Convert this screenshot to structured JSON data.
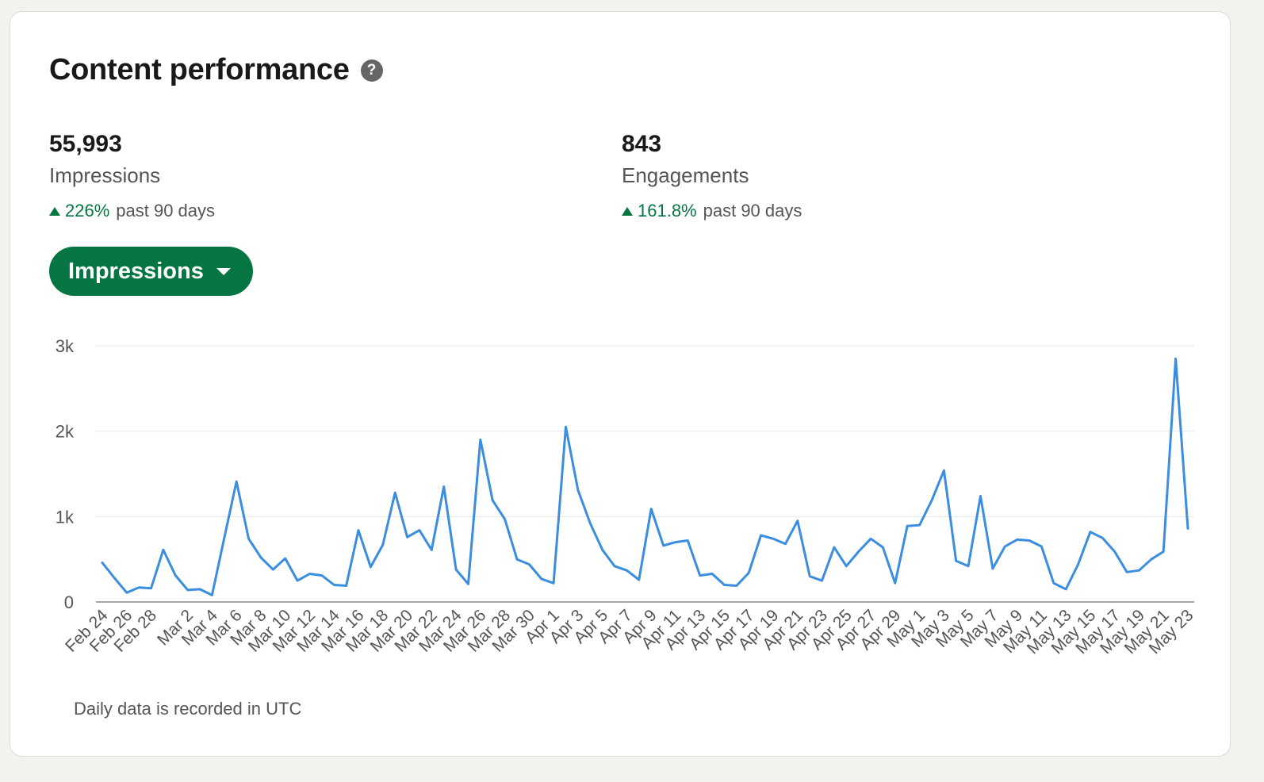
{
  "card": {
    "title": "Content performance",
    "help_icon": "question-circle-icon"
  },
  "stats": [
    {
      "value": "55,993",
      "label": "Impressions",
      "change": "226%",
      "period": "past 90 days",
      "trend_icon": "triangle-up-icon"
    },
    {
      "value": "843",
      "label": "Engagements",
      "change": "161.8%",
      "period": "past 90 days",
      "trend_icon": "triangle-up-icon"
    }
  ],
  "metric_selector": {
    "selected": "Impressions",
    "icon": "caret-down-icon"
  },
  "colors": {
    "accent_green": "#057642",
    "line_blue": "#3b8de0",
    "grid": "#e6e6e6"
  },
  "footnote": "Daily data is recorded in UTC",
  "chart_data": {
    "type": "line",
    "series": [
      {
        "values": [
          460,
          280,
          110,
          170,
          160,
          610,
          310,
          140,
          150,
          80,
          750,
          1410,
          740,
          520,
          380,
          510,
          250,
          330,
          310,
          200,
          190,
          840,
          410,
          670,
          1280,
          760,
          840,
          610,
          1350,
          380,
          210,
          1900,
          1190,
          970,
          500,
          440,
          270,
          220,
          2050,
          1310,
          920,
          610,
          420,
          370,
          260,
          1090,
          660,
          700,
          720,
          310,
          330,
          200,
          190,
          340,
          780,
          740,
          680,
          950,
          300,
          250,
          640,
          420,
          590,
          740,
          640,
          220,
          890,
          900,
          1190,
          1540,
          480,
          420,
          1240,
          390,
          650,
          730,
          720,
          650,
          220,
          150,
          440,
          820,
          750,
          590,
          350,
          370,
          500,
          590,
          2850,
          860
        ]
      }
    ],
    "x": [
      "Feb 24",
      "Feb 25",
      "Feb 26",
      "Feb 27",
      "Feb 28",
      "Feb 29",
      "Mar 1",
      "Mar 2",
      "Mar 3",
      "Mar 4",
      "Mar 5",
      "Mar 6",
      "Mar 7",
      "Mar 8",
      "Mar 9",
      "Mar 10",
      "Mar 11",
      "Mar 12",
      "Mar 13",
      "Mar 14",
      "Mar 15",
      "Mar 16",
      "Mar 17",
      "Mar 18",
      "Mar 19",
      "Mar 20",
      "Mar 21",
      "Mar 22",
      "Mar 23",
      "Mar 24",
      "Mar 25",
      "Mar 26",
      "Mar 27",
      "Mar 28",
      "Mar 29",
      "Mar 30",
      "Mar 31",
      "Apr 1",
      "Apr 2",
      "Apr 3",
      "Apr 4",
      "Apr 5",
      "Apr 6",
      "Apr 7",
      "Apr 8",
      "Apr 9",
      "Apr 10",
      "Apr 11",
      "Apr 12",
      "Apr 13",
      "Apr 14",
      "Apr 15",
      "Apr 16",
      "Apr 17",
      "Apr 18",
      "Apr 19",
      "Apr 20",
      "Apr 21",
      "Apr 22",
      "Apr 23",
      "Apr 24",
      "Apr 25",
      "Apr 26",
      "Apr 27",
      "Apr 28",
      "Apr 29",
      "Apr 30",
      "May 1",
      "May 2",
      "May 3",
      "May 4",
      "May 5",
      "May 6",
      "May 7",
      "May 8",
      "May 9",
      "May 10",
      "May 11",
      "May 12",
      "May 13",
      "May 14",
      "May 15",
      "May 16",
      "May 17",
      "May 18",
      "May 19",
      "May 20",
      "May 21",
      "May 22",
      "May 23"
    ],
    "x_tick_labels": [
      "Feb 24",
      "Feb 26",
      "Feb 28",
      "Mar 2",
      "Mar 4",
      "Mar 6",
      "Mar 8",
      "Mar 10",
      "Mar 12",
      "Mar 14",
      "Mar 16",
      "Mar 18",
      "Mar 20",
      "Mar 22",
      "Mar 24",
      "Mar 26",
      "Mar 28",
      "Mar 30",
      "Apr 1",
      "Apr 3",
      "Apr 5",
      "Apr 7",
      "Apr 9",
      "Apr 11",
      "Apr 13",
      "Apr 15",
      "Apr 17",
      "Apr 19",
      "Apr 21",
      "Apr 23",
      "Apr 25",
      "Apr 27",
      "Apr 29",
      "May 1",
      "May 3",
      "May 5",
      "May 7",
      "May 9",
      "May 11",
      "May 13",
      "May 15",
      "May 17",
      "May 19",
      "May 21",
      "May 23"
    ],
    "y_ticks": [
      {
        "value": 0,
        "label": "0"
      },
      {
        "value": 1000,
        "label": "1k"
      },
      {
        "value": 2000,
        "label": "2k"
      },
      {
        "value": 3000,
        "label": "3k"
      }
    ],
    "ylim": [
      0,
      3000
    ],
    "grid": true,
    "legend": "none"
  }
}
